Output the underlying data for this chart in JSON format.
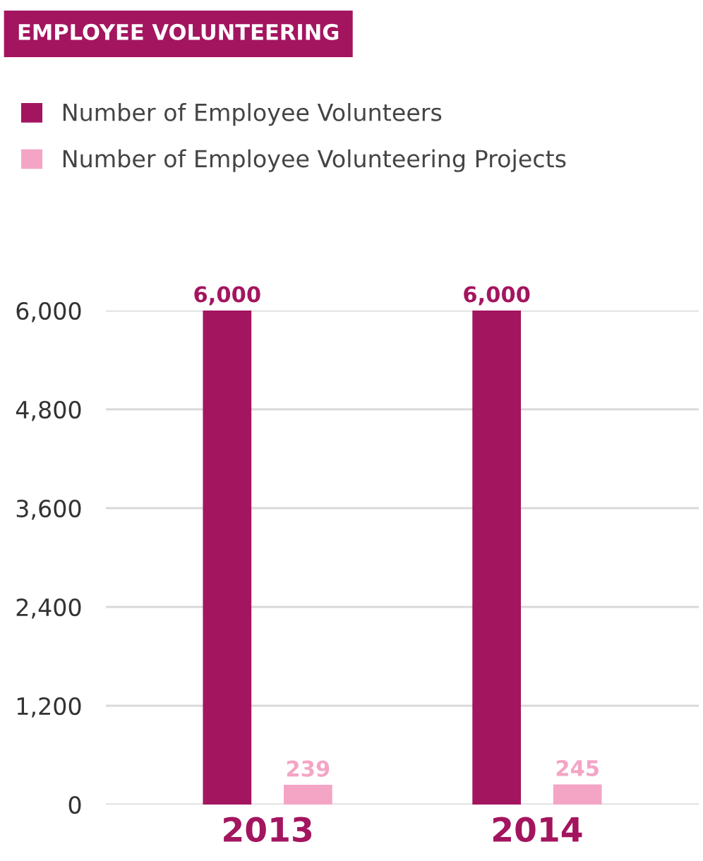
{
  "chart_data": {
    "type": "bar",
    "title": "EMPLOYEE VOLUNTEERING",
    "categories": [
      "2013",
      "2014"
    ],
    "series": [
      {
        "name": "Number of Employee Volunteers",
        "color": "#a3155f",
        "values": [
          6000,
          6000
        ],
        "value_labels": [
          "6,000",
          "6,000"
        ]
      },
      {
        "name": "Number of Employee Volunteering Projects",
        "color": "#f4a5c5",
        "values": [
          239,
          245
        ],
        "value_labels": [
          "239",
          "245"
        ]
      }
    ],
    "ylim": [
      0,
      6000
    ],
    "yticks": [
      0,
      {
        "value": 1200,
        "label": "1,200"
      },
      {
        "value": 2400,
        "label": "2,400"
      },
      {
        "value": 3600,
        "label": "3,600"
      },
      {
        "value": 4800,
        "label": "4,800"
      },
      {
        "value": 6000,
        "label": "6,000"
      }
    ],
    "grid": "y",
    "legend": "top left"
  }
}
